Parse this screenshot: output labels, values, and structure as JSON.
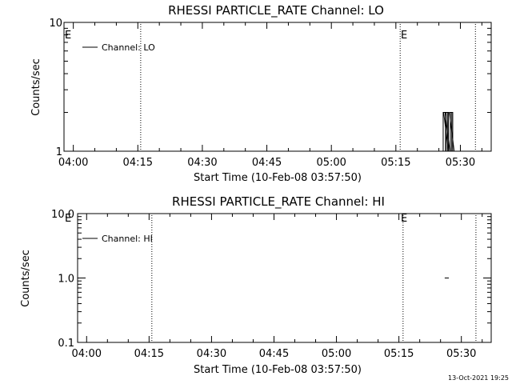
{
  "timestamp": "13-Oct-2021 19:25",
  "chart_data": [
    {
      "type": "line",
      "title": "RHESSI PARTICLE_RATE Channel: LO",
      "xlabel": "Start Time (10-Feb-08 03:57:50)",
      "ylabel": "Counts/sec",
      "yscale": "log",
      "ylim": [
        1,
        10
      ],
      "xlim": [
        "03:57:50",
        "05:37:10"
      ],
      "xticks": [
        "04:00",
        "04:15",
        "04:30",
        "04:45",
        "05:00",
        "05:15",
        "05:30"
      ],
      "yticks": [
        "1",
        "10"
      ],
      "legend": {
        "position": "top-left",
        "entries": [
          "Channel: LO"
        ]
      },
      "series": [
        {
          "name": "Channel: LO",
          "x": [
            "05:25:40",
            "05:26:00",
            "05:26:40",
            "05:27:00",
            "05:27:40",
            "05:28:00"
          ],
          "values": [
            1,
            2,
            2,
            1,
            2,
            1
          ]
        }
      ],
      "markers": [
        {
          "x": "04:15:40",
          "label": ""
        },
        {
          "x": "05:16:00",
          "label": "E"
        },
        {
          "x": "05:33:30",
          "label": ""
        }
      ],
      "corner_label": "E"
    },
    {
      "type": "line",
      "title": "RHESSI PARTICLE_RATE Channel: HI",
      "xlabel": "Start Time (10-Feb-08 03:57:50)",
      "ylabel": "Counts/sec",
      "yscale": "log",
      "ylim": [
        0.1,
        10
      ],
      "xlim": [
        "03:57:50",
        "05:37:10"
      ],
      "xticks": [
        "04:00",
        "04:15",
        "04:30",
        "04:45",
        "05:00",
        "05:15",
        "05:30"
      ],
      "yticks": [
        "0.1",
        "1.0",
        "10.0"
      ],
      "legend": {
        "position": "top-left",
        "entries": [
          "Channel: HI"
        ]
      },
      "series": [
        {
          "name": "Channel: HI",
          "x": [
            "05:26:00",
            "05:27:00"
          ],
          "values": [
            1,
            1
          ]
        }
      ],
      "markers": [
        {
          "x": "04:15:40",
          "label": ""
        },
        {
          "x": "05:16:00",
          "label": "E"
        },
        {
          "x": "05:33:30",
          "label": ""
        }
      ],
      "corner_label": "E"
    }
  ]
}
